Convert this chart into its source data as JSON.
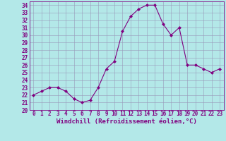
{
  "x": [
    0,
    1,
    2,
    3,
    4,
    5,
    6,
    7,
    8,
    9,
    10,
    11,
    12,
    13,
    14,
    15,
    16,
    17,
    18,
    19,
    20,
    21,
    22,
    23
  ],
  "y": [
    22.0,
    22.5,
    23.0,
    23.0,
    22.5,
    21.5,
    21.0,
    21.3,
    23.0,
    25.5,
    26.5,
    30.5,
    32.5,
    33.5,
    34.0,
    34.0,
    31.5,
    30.0,
    31.0,
    26.0,
    26.0,
    25.5,
    25.0,
    25.5
  ],
  "line_color": "#800080",
  "marker": "D",
  "marker_size": 2.0,
  "bg_color": "#b3e8e8",
  "grid_color": "#9999bb",
  "xlabel": "Windchill (Refroidissement éolien,°C)",
  "ylim": [
    20,
    34.5
  ],
  "xlim": [
    -0.5,
    23.5
  ],
  "yticks": [
    20,
    21,
    22,
    23,
    24,
    25,
    26,
    27,
    28,
    29,
    30,
    31,
    32,
    33,
    34
  ],
  "xticks": [
    0,
    1,
    2,
    3,
    4,
    5,
    6,
    7,
    8,
    9,
    10,
    11,
    12,
    13,
    14,
    15,
    16,
    17,
    18,
    19,
    20,
    21,
    22,
    23
  ],
  "tick_label_size": 5.5,
  "xlabel_size": 6.5,
  "spine_color": "#800080",
  "fig_bg": "#b3e8e8"
}
